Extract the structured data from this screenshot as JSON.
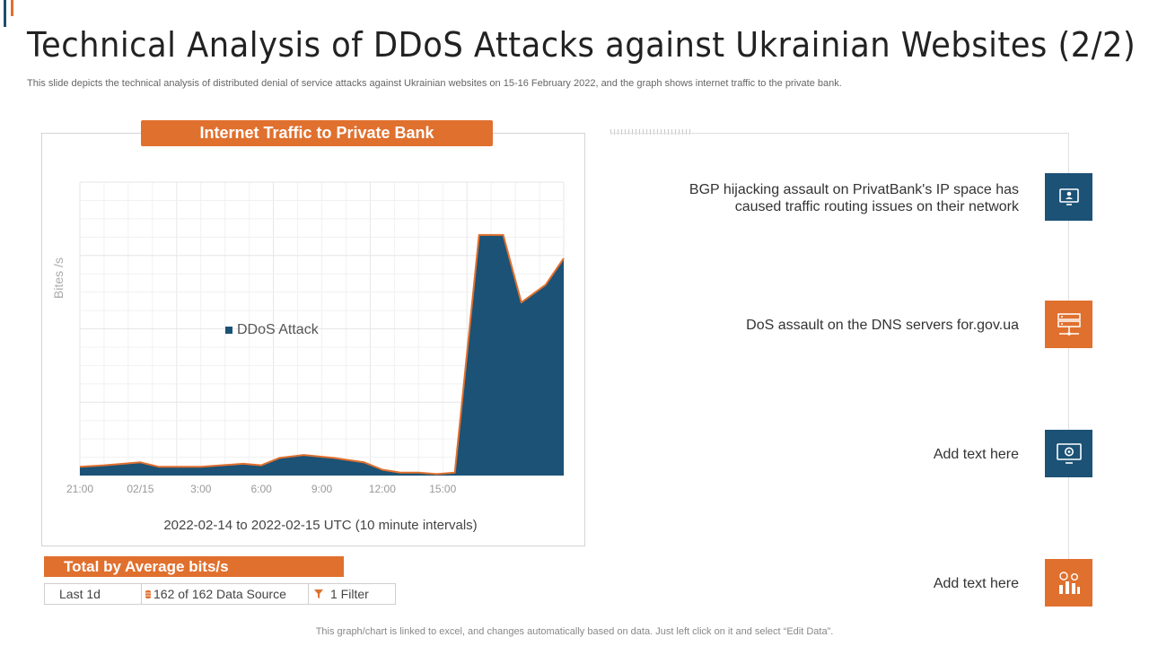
{
  "slide": {
    "title": "Technical Analysis of DDoS Attacks against Ukrainian Websites (2/2)",
    "subtitle": "This slide depicts the technical analysis of distributed denial of service attacks against Ukrainian websites on 15-16 February 2022, and the graph shows internet traffic to the private bank.",
    "footer_note": "This graph/chart is linked to excel,  and changes automatically based on data. Just left click on it and select “Edit Data”."
  },
  "colors": {
    "accent_orange": "#e0702e",
    "accent_blue": "#1b5276"
  },
  "chart_data": {
    "type": "area",
    "title": "Internet Traffic to Private Bank",
    "xlabel": "2022-02-14 to 2022-02-15 UTC (10 minute intervals)",
    "ylabel": "Bites /s",
    "x_tick_labels": [
      "21:00",
      "02/15",
      "3:00",
      "6:00",
      "9:00",
      "12:00",
      "15:00"
    ],
    "x_tick_hours": [
      0,
      5,
      10,
      15,
      20,
      25,
      30
    ],
    "x_range": [
      0,
      40
    ],
    "ylim": [
      0,
      100
    ],
    "grid": true,
    "legend_position": "center-left",
    "series": [
      {
        "name": "DDoS Attack",
        "x": [
          0,
          2,
          5,
          6.5,
          10,
          13.5,
          15,
          16.5,
          18.5,
          21,
          23.5,
          25,
          26.5,
          28,
          29.5,
          31,
          33,
          35,
          36.5,
          38.5,
          40
        ],
        "values": [
          3,
          3.5,
          4.5,
          3,
          3,
          4,
          3.5,
          6,
          7,
          6,
          4.5,
          2,
          1,
          1,
          0.5,
          1,
          82,
          82,
          59,
          65,
          74
        ]
      }
    ]
  },
  "total_panel": {
    "heading": "Total by Average bits/s",
    "period": "Last 1d",
    "data_source": "162 of 162 Data Source",
    "filter": "1 Filter"
  },
  "timeline": [
    {
      "text": "BGP hijacking assault on PrivatBank's IP space has caused traffic routing issues on their network",
      "icon": "monitor-user-icon",
      "color": "blue"
    },
    {
      "text": "DoS assault on the DNS servers for.gov.ua",
      "icon": "server-icon",
      "color": "orange"
    },
    {
      "text": "Add text here",
      "icon": "monitor-settings-icon",
      "color": "blue"
    },
    {
      "text": "Add text here",
      "icon": "money-chart-icon",
      "color": "orange"
    }
  ]
}
